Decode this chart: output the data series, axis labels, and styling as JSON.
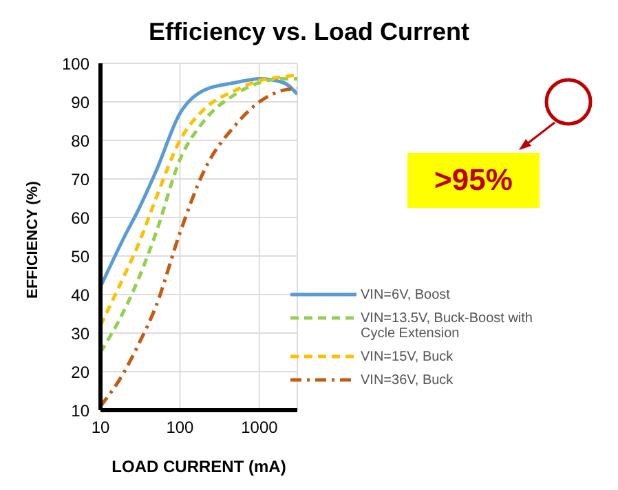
{
  "chart_data": {
    "type": "line",
    "title": "Efficiency vs. Load Current",
    "xlabel": "LOAD CURRENT (mA)",
    "ylabel": "EFFICIENCY (%)",
    "x": [
      10,
      20,
      30,
      50,
      100,
      200,
      500,
      1000,
      2000,
      3000
    ],
    "series": [
      {
        "name": "VIN=6V, Boost",
        "color": "#5b9bd5",
        "line_style": "solid",
        "values": [
          42,
          55,
          62,
          72,
          87,
          93,
          95,
          96,
          95,
          92
        ]
      },
      {
        "name": "VIN=13.5V, Buck-Boost with Cycle Extension",
        "color": "#92d050",
        "line_style": "dashed",
        "values": [
          25,
          36,
          44,
          56,
          75,
          85,
          92,
          95,
          96,
          96
        ]
      },
      {
        "name": "VIN=15V, Buck",
        "color": "#ffc000",
        "line_style": "dashed",
        "values": [
          32,
          45,
          53,
          65,
          80,
          88,
          93,
          95.5,
          96.5,
          97
        ]
      },
      {
        "name": "VIN=36V, Buck",
        "color": "#c55a11",
        "line_style": "dashdot",
        "values": [
          11,
          20,
          27,
          37,
          56,
          72,
          84,
          90,
          93,
          93.5
        ]
      }
    ],
    "log": "x",
    "xlim": [
      10,
      3000
    ],
    "xticks": [
      10,
      100,
      1000
    ],
    "ylim": [
      10,
      100
    ],
    "yticks": [
      10,
      20,
      30,
      40,
      50,
      60,
      70,
      80,
      90,
      100
    ],
    "grid": true,
    "legend": "bottom right",
    "marker": "none",
    "annotations": [
      ">95%"
    ]
  }
}
